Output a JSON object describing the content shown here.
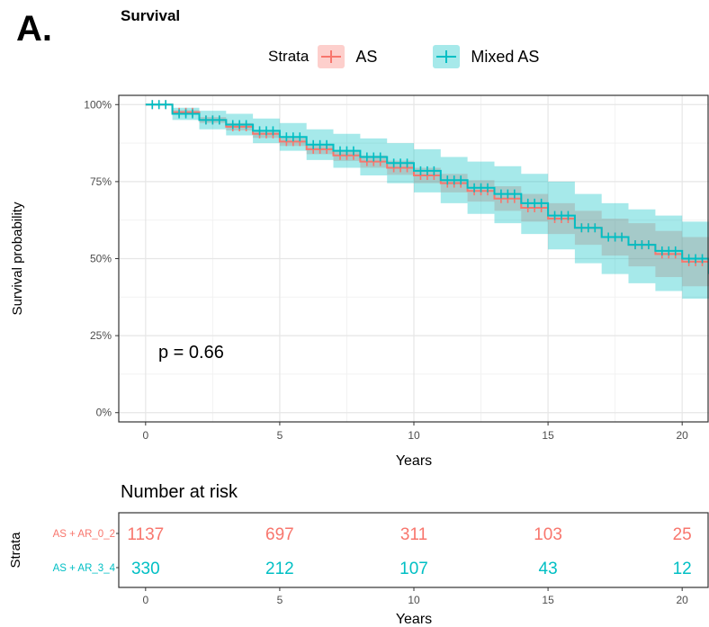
{
  "figure": {
    "panel_label": "A.",
    "survival_title": "Survival",
    "risk_title": "Number at risk",
    "p_value_text": "p = 0.66"
  },
  "legend": {
    "title": "Strata",
    "entries": [
      {
        "label": "AS",
        "color": "#F8766D",
        "fill": "#F8766D"
      },
      {
        "label": "Mixed AS",
        "color": "#00BFC4",
        "fill": "#00BFC4"
      }
    ]
  },
  "chart_data": [
    {
      "type": "line",
      "title": "Survival",
      "xlabel": "Years",
      "ylabel": "Survival probability",
      "xlim": [
        -1,
        21
      ],
      "ylim": [
        -0.03,
        1.03
      ],
      "xticks": [
        0,
        5,
        10,
        15,
        20
      ],
      "yticks": [
        {
          "value": 0,
          "label": "0%"
        },
        {
          "value": 0.25,
          "label": "25%"
        },
        {
          "value": 0.5,
          "label": "50%"
        },
        {
          "value": 0.75,
          "label": "75%"
        },
        {
          "value": 1,
          "label": "100%"
        }
      ],
      "grid": true,
      "legend_position": "top",
      "annotation": "p = 0.66",
      "series": [
        {
          "name": "AS",
          "color": "#F8766D",
          "x": [
            0,
            1,
            2,
            3,
            4,
            5,
            6,
            7,
            8,
            9,
            10,
            11,
            12,
            13,
            14,
            15,
            16,
            17,
            18,
            19,
            20,
            21
          ],
          "y": [
            1.0,
            0.975,
            0.95,
            0.928,
            0.905,
            0.88,
            0.855,
            0.835,
            0.815,
            0.795,
            0.77,
            0.745,
            0.72,
            0.695,
            0.665,
            0.63,
            0.6,
            0.57,
            0.545,
            0.515,
            0.49,
            0.45
          ],
          "lower": [
            1.0,
            0.968,
            0.94,
            0.916,
            0.892,
            0.866,
            0.839,
            0.817,
            0.795,
            0.772,
            0.745,
            0.715,
            0.685,
            0.655,
            0.62,
            0.58,
            0.545,
            0.51,
            0.475,
            0.44,
            0.41,
            0.37
          ],
          "upper": [
            1.0,
            0.982,
            0.96,
            0.94,
            0.918,
            0.894,
            0.871,
            0.853,
            0.835,
            0.818,
            0.795,
            0.775,
            0.755,
            0.735,
            0.71,
            0.68,
            0.655,
            0.63,
            0.615,
            0.59,
            0.57,
            0.53
          ]
        },
        {
          "name": "Mixed AS",
          "color": "#00BFC4",
          "x": [
            0,
            1,
            2,
            3,
            4,
            5,
            6,
            7,
            8,
            9,
            10,
            11,
            12,
            13,
            14,
            15,
            16,
            17,
            18,
            19,
            20,
            21
          ],
          "y": [
            1.0,
            0.97,
            0.95,
            0.935,
            0.915,
            0.895,
            0.87,
            0.85,
            0.83,
            0.81,
            0.785,
            0.755,
            0.73,
            0.71,
            0.68,
            0.64,
            0.6,
            0.57,
            0.545,
            0.525,
            0.5,
            0.45
          ],
          "lower": [
            1.0,
            0.95,
            0.92,
            0.9,
            0.875,
            0.85,
            0.82,
            0.795,
            0.77,
            0.745,
            0.715,
            0.68,
            0.645,
            0.615,
            0.58,
            0.53,
            0.485,
            0.45,
            0.42,
            0.395,
            0.37,
            0.34
          ],
          "upper": [
            1.0,
            0.99,
            0.98,
            0.97,
            0.955,
            0.94,
            0.92,
            0.905,
            0.89,
            0.875,
            0.855,
            0.83,
            0.815,
            0.8,
            0.775,
            0.75,
            0.71,
            0.68,
            0.66,
            0.64,
            0.62,
            0.57
          ]
        }
      ]
    },
    {
      "type": "table",
      "title": "Number at risk",
      "xlabel": "Years",
      "ylabel": "Strata",
      "xticks": [
        0,
        5,
        10,
        15,
        20
      ],
      "rows": [
        {
          "label": "AS + AR_0_2",
          "color": "#F8766D",
          "values": [
            1137,
            697,
            311,
            103,
            25
          ]
        },
        {
          "label": "AS + AR_3_4",
          "color": "#00BFC4",
          "values": [
            330,
            212,
            107,
            43,
            12
          ]
        }
      ]
    }
  ]
}
